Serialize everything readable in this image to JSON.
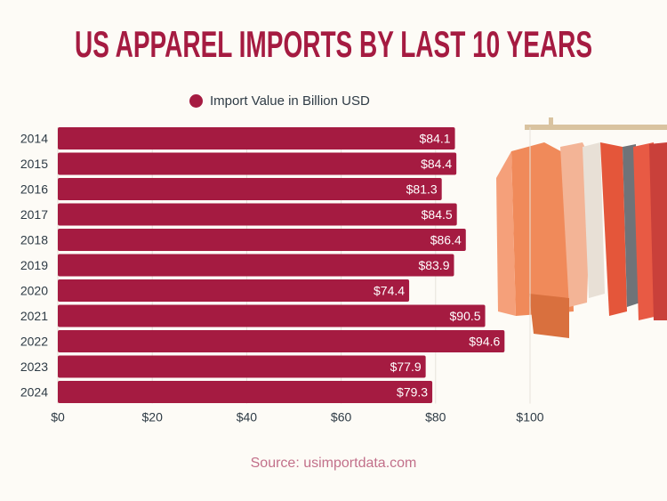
{
  "title": "US APPAREL IMPORTS BY LAST 10 YEARS",
  "source": "Source: usimportdata.com",
  "colors": {
    "bar": "#a51b41",
    "title": "#a51b41",
    "source": "#c2708a",
    "text": "#2e3b45",
    "background": "#fdfbf6"
  },
  "chart_data": {
    "type": "bar",
    "orientation": "horizontal",
    "title": "US APPAREL IMPORTS BY LAST 10 YEARS",
    "legend": [
      "Import Value in Billion USD"
    ],
    "legend_position": "top",
    "categories": [
      "2014",
      "2015",
      "2016",
      "2017",
      "2018",
      "2019",
      "2020",
      "2021",
      "2022",
      "2023",
      "2024"
    ],
    "values": [
      84.1,
      84.4,
      81.3,
      84.5,
      86.4,
      83.9,
      74.4,
      90.5,
      94.6,
      77.9,
      79.3
    ],
    "data_labels": [
      "$84.1",
      "$84.4",
      "$81.3",
      "$84.5",
      "$86.4",
      "$83.9",
      "$74.4",
      "$90.5",
      "$94.6",
      "$77.9",
      "$79.3"
    ],
    "x_ticks": [
      0,
      20,
      40,
      60,
      80,
      100
    ],
    "x_tick_labels": [
      "$0",
      "$20",
      "$40",
      "$60",
      "$80",
      "$100"
    ],
    "xlim": [
      0,
      100
    ],
    "grid": true,
    "xlabel": "",
    "ylabel": ""
  }
}
